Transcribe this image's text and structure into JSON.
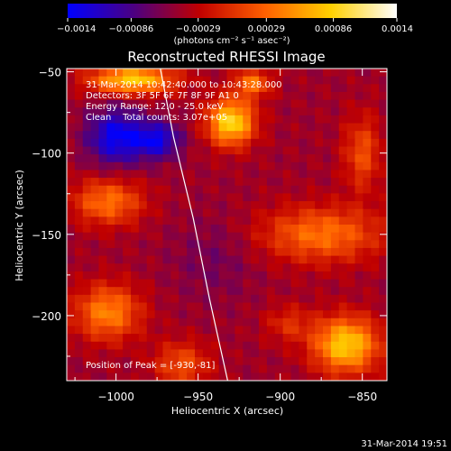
{
  "chart_data": {
    "type": "heatmap",
    "title": "Reconstructed RHESSI Image",
    "xlabel": "Heliocentric X (arcsec)",
    "ylabel": "Heliocentric Y (arcsec)",
    "xlim": [
      -1030,
      -835
    ],
    "ylim": [
      -240,
      -48
    ],
    "x_ticks": [
      -1000,
      -950,
      -900,
      -850
    ],
    "x_tick_labels": [
      "−1000",
      "−950",
      "−900",
      "−850"
    ],
    "y_ticks": [
      -50,
      -100,
      -150,
      -200
    ],
    "y_tick_labels": [
      "−50",
      "−100",
      "−150",
      "−200"
    ],
    "colorbar": {
      "range": [
        -0.0014,
        0.0014
      ],
      "tick_values": [
        -0.0014,
        -0.00086,
        -0.00029,
        0.00029,
        0.00086,
        0.0014
      ],
      "tick_labels": [
        "−0.0014",
        "−0.00086",
        "−0.00029",
        "0.00029",
        "0.00086",
        "0.0014"
      ],
      "unit_label": "(photons cm⁻² s⁻¹ asec⁻²)",
      "colormap": [
        "#0000ff",
        "#4b0082",
        "#c00000",
        "#ff6000",
        "#ffd000",
        "#ffffff"
      ]
    },
    "annotations": [
      "31-Mar-2014 10:42:40.000 to 10:43:28.000",
      "Detectors: 3F 5F 6F 7F 8F 9F A1 0",
      "Energy Range: 12.0 - 25.0 keV",
      "Clean    Total counts: 3.07e+05"
    ],
    "peak_label": "Position of Peak = [-930,-81]",
    "peak_position": [
      -930,
      -81
    ],
    "limb_curve": [
      [
        -973,
        -48
      ],
      [
        -965,
        -90
      ],
      [
        -953,
        -140
      ],
      [
        -943,
        -190
      ],
      [
        -932,
        -240
      ]
    ],
    "sources": [
      {
        "x": -990,
        "y": -55,
        "amp": 0.0013,
        "sx": 18,
        "sy": 6
      },
      {
        "x": -930,
        "y": -81,
        "amp": 0.0014,
        "sx": 10,
        "sy": 10
      },
      {
        "x": -917,
        "y": -57,
        "amp": 0.0008,
        "sx": 8,
        "sy": 6
      },
      {
        "x": -860,
        "y": -218,
        "amp": 0.0013,
        "sx": 14,
        "sy": 12
      },
      {
        "x": -1005,
        "y": -198,
        "amp": 0.0009,
        "sx": 14,
        "sy": 12
      },
      {
        "x": -1005,
        "y": -130,
        "amp": 0.0008,
        "sx": 15,
        "sy": 10
      },
      {
        "x": -875,
        "y": -150,
        "amp": 0.0008,
        "sx": 26,
        "sy": 12
      },
      {
        "x": -850,
        "y": -100,
        "amp": 0.0006,
        "sx": 8,
        "sy": 16
      },
      {
        "x": -960,
        "y": -230,
        "amp": 0.0006,
        "sx": 12,
        "sy": 10
      },
      {
        "x": -895,
        "y": -205,
        "amp": 0.0004,
        "sx": 10,
        "sy": 8
      },
      {
        "x": -1000,
        "y": -90,
        "amp": -0.0009,
        "sx": 12,
        "sy": 12
      },
      {
        "x": -975,
        "y": -92,
        "amp": -0.0008,
        "sx": 10,
        "sy": 8
      },
      {
        "x": -940,
        "y": -165,
        "amp": -0.0002,
        "sx": 18,
        "sy": 18
      }
    ],
    "background": -0.00045
  },
  "timestamp": "31-Mar-2014 19:51"
}
